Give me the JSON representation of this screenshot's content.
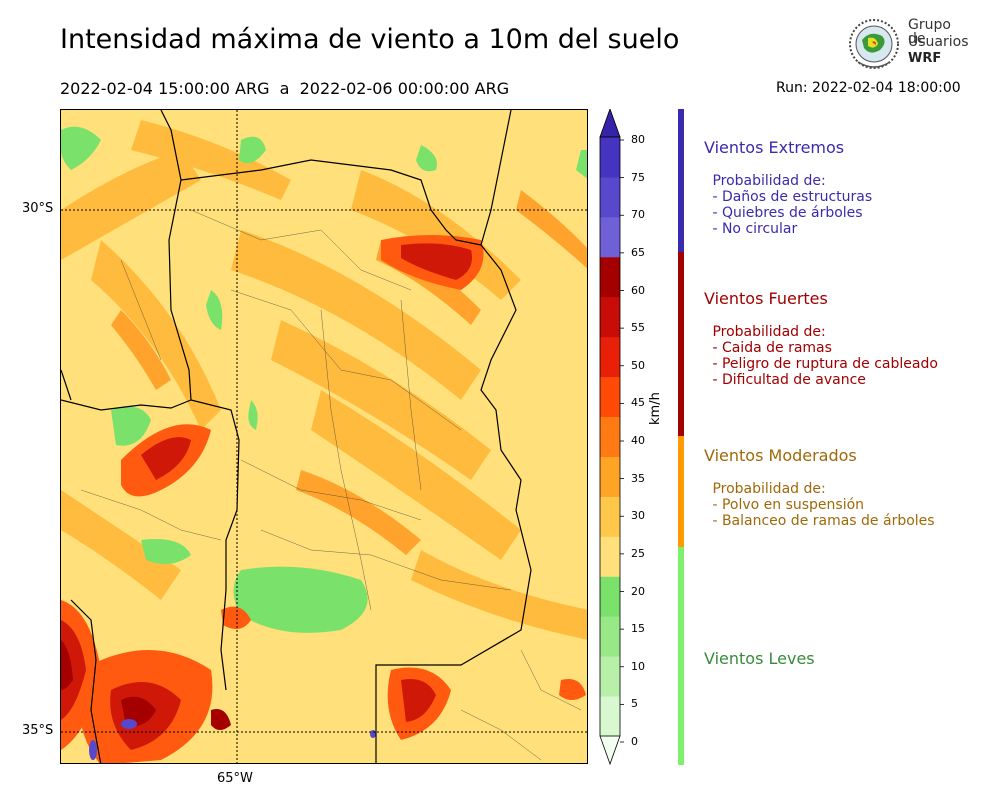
{
  "title": "Intensidad máxima de viento a 10m del suelo",
  "subtitle": "2022-02-04 15:00:00 ARG  a  2022-02-06 00:00:00 ARG",
  "run": "Run: 2022-02-04 18:00:00",
  "logo": {
    "line1": "Grupo de",
    "line2": "Usuarios",
    "line3": "WRF"
  },
  "map": {
    "lat_labels": [
      {
        "label": "30°S"
      },
      {
        "label": "35°S"
      }
    ],
    "lon_labels": [
      {
        "label": "65°W"
      }
    ]
  },
  "colorbar": {
    "unit": "km/h",
    "ticks": [
      "0",
      "5",
      "10",
      "15",
      "20",
      "25",
      "30",
      "35",
      "40",
      "45",
      "50",
      "55",
      "60",
      "65",
      "70",
      "75",
      "80"
    ],
    "colors": [
      "#f2fff0",
      "#d8f8d0",
      "#b8f0aa",
      "#98e888",
      "#7ae26a",
      "#ffe07a",
      "#ffc84a",
      "#ffa424",
      "#ff7a12",
      "#ff4a08",
      "#e82008",
      "#c80c08",
      "#a40000",
      "#7060d8",
      "#5848cc",
      "#4434c0",
      "#3424a8"
    ]
  },
  "categories": [
    {
      "name": "Vientos Extremos",
      "color": "#3a2aae",
      "lines": [
        " Probabilidad de:",
        " - Daños de estructuras",
        " - Quiebres de árboles",
        " - No circular"
      ]
    },
    {
      "name": "Vientos Fuertes",
      "color": "#a00000",
      "lines": [
        " Probabilidad de:",
        " - Caida de ramas",
        " - Peligro de ruptura de cableado",
        " - Dificultad de avance"
      ]
    },
    {
      "name": "Vientos Moderados",
      "color": "#a06808",
      "lines": [
        " Probabilidad de:",
        " - Polvo en suspensión",
        " - Balanceo de ramas de árboles"
      ]
    },
    {
      "name": "Vientos Leves",
      "color": "#3a8a3a",
      "lines": []
    }
  ],
  "category_bar_colors": [
    "#3a2aae",
    "#a00000",
    "#ff9a00",
    "#7ef06e"
  ]
}
